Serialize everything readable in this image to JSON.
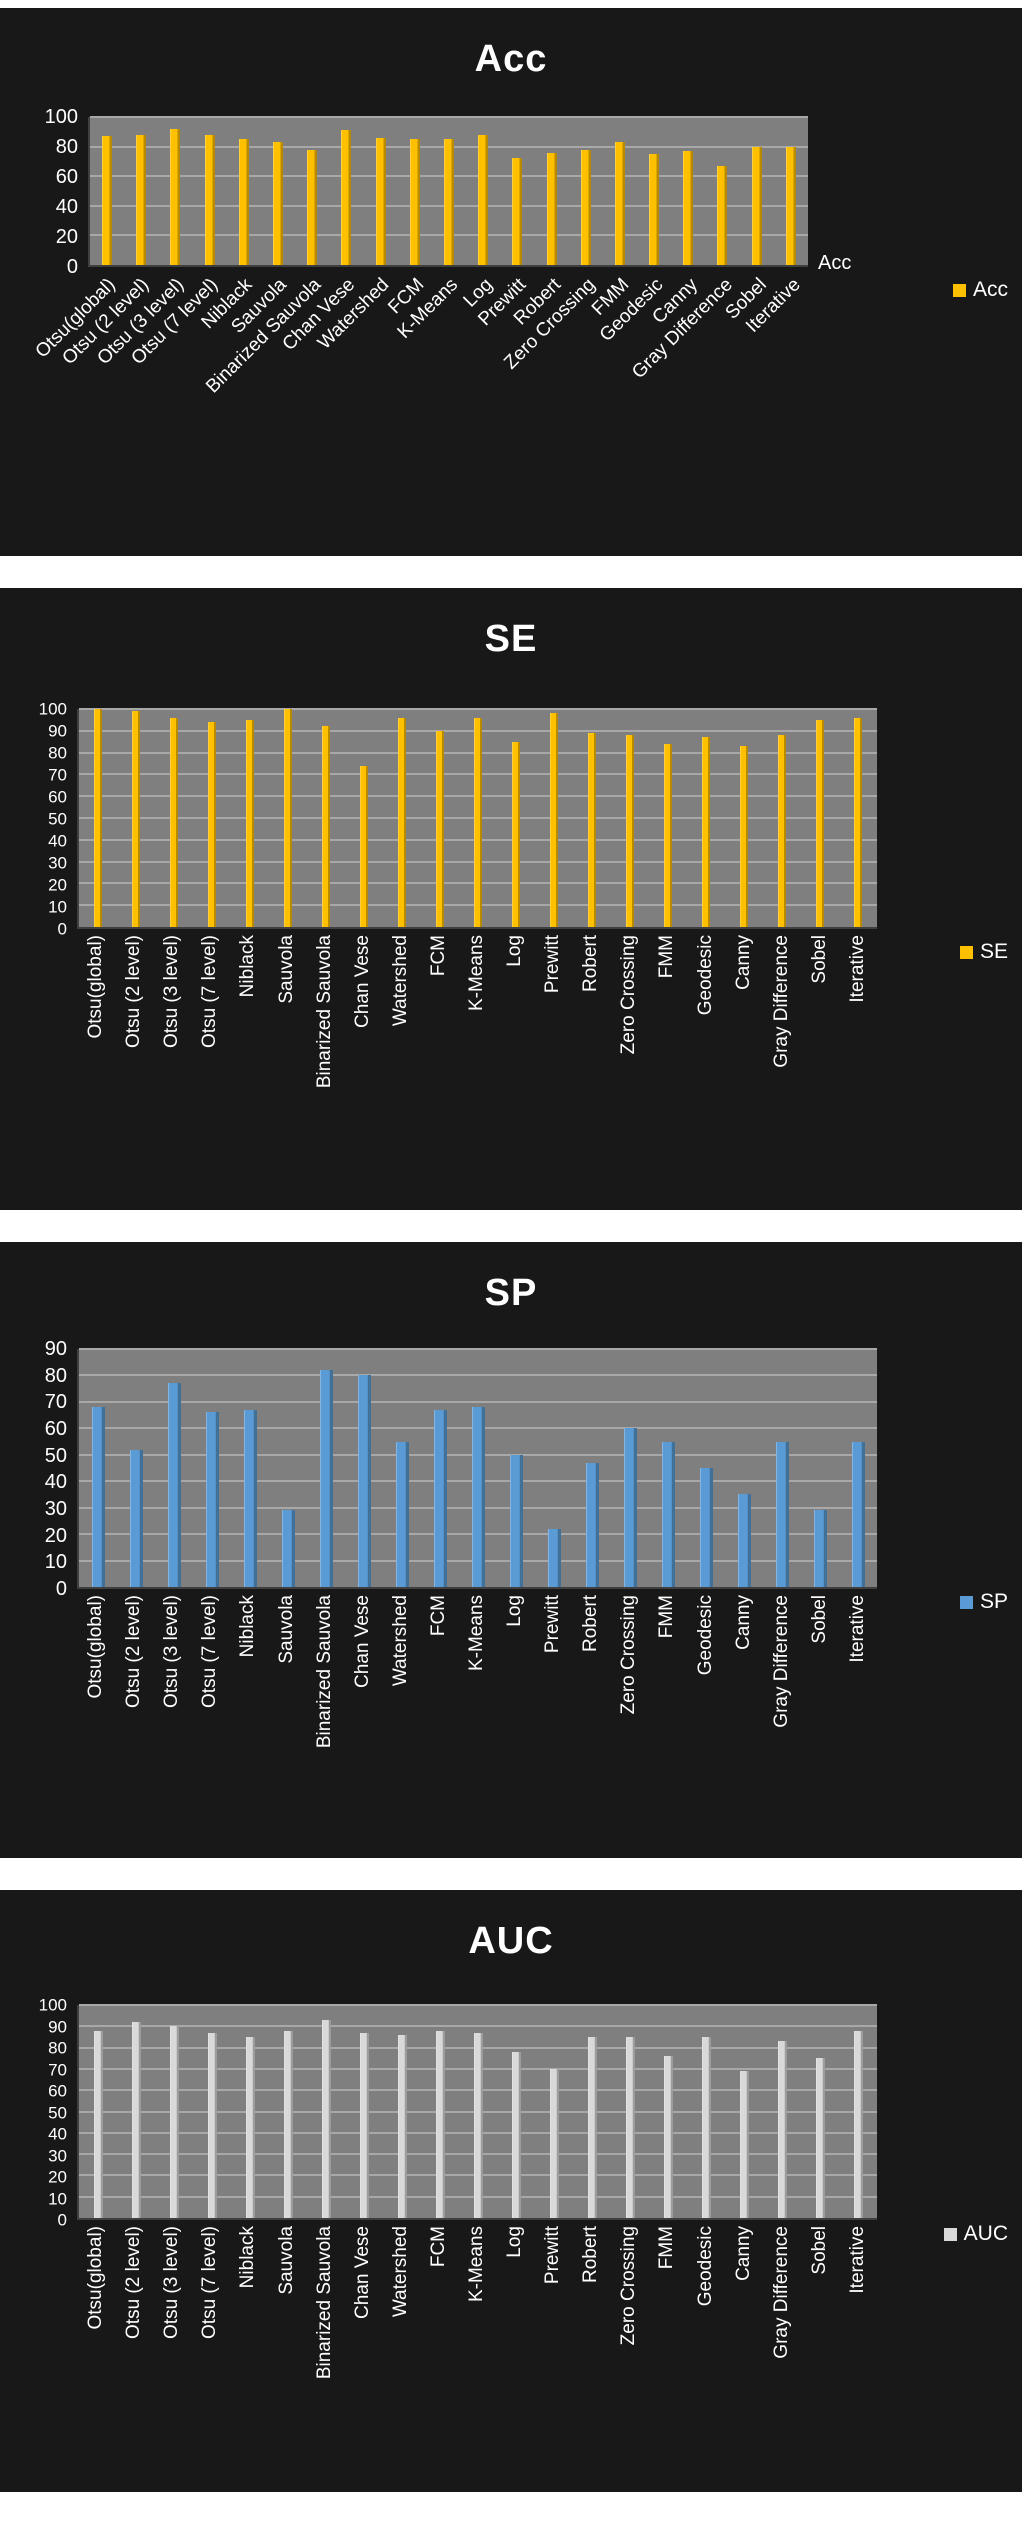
{
  "page": {
    "background": "#ffffff",
    "panel_background": "#181818",
    "plot_background": "#7f7f7f",
    "gridline_color": "#a8a8a8",
    "text_color": "#ffffff"
  },
  "chart_data": [
    {
      "id": "acc",
      "type": "bar",
      "title": "Acc",
      "legend": "Acc",
      "axis_label": "Acc",
      "legend_position": "right",
      "grid": true,
      "label_rotation": 45,
      "bar_color": "#FFC000",
      "ymin": 0,
      "ymax": 100,
      "ystep": 20,
      "ylim": [
        0,
        100
      ],
      "categories": [
        "Otsu(global)",
        "Otsu (2 level)",
        "Otsu (3 level)",
        "Otsu (7 level)",
        "Niblack",
        "Sauvola",
        "Binarized Sauvola",
        "Chan Vese",
        "Watershed",
        "FCM",
        "K-Means",
        "Log",
        "Prewitt",
        "Robert",
        "Zero Crossing",
        "FMM",
        "Geodesic",
        "Canny",
        "Gray Difference",
        "Sobel",
        "Iterative"
      ],
      "values": [
        87,
        88,
        92,
        88,
        85,
        83,
        78,
        91,
        86,
        85,
        85,
        88,
        72,
        76,
        78,
        83,
        75,
        77,
        67,
        80,
        80
      ]
    },
    {
      "id": "se",
      "type": "bar",
      "title": "SE",
      "legend": "SE",
      "legend_position": "right",
      "grid": true,
      "label_rotation": 90,
      "bar_color": "#FFC000",
      "ymin": 0,
      "ymax": 100,
      "ystep": 10,
      "ylim": [
        0,
        100
      ],
      "categories": [
        "Otsu(global)",
        "Otsu (2 level)",
        "Otsu (3 level)",
        "Otsu (7 level)",
        "Niblack",
        "Sauvola",
        "Binarized Sauvola",
        "Chan Vese",
        "Watershed",
        "FCM",
        "K-Means",
        "Log",
        "Prewitt",
        "Robert",
        "Zero Crossing",
        "FMM",
        "Geodesic",
        "Canny",
        "Gray Difference",
        "Sobel",
        "Iterative"
      ],
      "values": [
        100,
        99,
        96,
        94,
        95,
        100,
        92,
        74,
        96,
        90,
        96,
        85,
        98,
        89,
        88,
        84,
        87,
        83,
        88,
        95,
        96
      ]
    },
    {
      "id": "sp",
      "type": "bar",
      "title": "SP",
      "legend": "SP",
      "legend_position": "right",
      "grid": true,
      "label_rotation": 90,
      "bar_color": "#5B9BD5",
      "ymin": 0,
      "ymax": 90,
      "ystep": 10,
      "ylim": [
        0,
        90
      ],
      "categories": [
        "Otsu(global)",
        "Otsu (2 level)",
        "Otsu (3 level)",
        "Otsu (7 level)",
        "Niblack",
        "Sauvola",
        "Binarized Sauvola",
        "Chan Vese",
        "Watershed",
        "FCM",
        "K-Means",
        "Log",
        "Prewitt",
        "Robert",
        "Zero Crossing",
        "FMM",
        "Geodesic",
        "Canny",
        "Gray Difference",
        "Sobel",
        "Iterative"
      ],
      "values": [
        68,
        52,
        77,
        66,
        67,
        29,
        82,
        80,
        55,
        67,
        68,
        50,
        22,
        47,
        60,
        55,
        45,
        35,
        55,
        29,
        55
      ]
    },
    {
      "id": "auc",
      "type": "bar",
      "title": "AUC",
      "legend": "AUC",
      "legend_position": "right",
      "grid": true,
      "label_rotation": 90,
      "bar_color": "#D9D9D9",
      "ymin": 0,
      "ymax": 100,
      "ystep": 10,
      "ylim": [
        0,
        100
      ],
      "categories": [
        "Otsu(global)",
        "Otsu (2 level)",
        "Otsu (3 level)",
        "Otsu (7 level)",
        "Niblack",
        "Sauvola",
        "Binarized Sauvola",
        "Chan Vese",
        "Watershed",
        "FCM",
        "K-Means",
        "Log",
        "Prewitt",
        "Robert",
        "Zero Crossing",
        "FMM",
        "Geodesic",
        "Canny",
        "Gray Difference",
        "Sobel",
        "Iterative"
      ],
      "values": [
        88,
        92,
        90,
        87,
        85,
        88,
        93,
        87,
        86,
        88,
        87,
        78,
        70,
        85,
        85,
        76,
        85,
        69,
        83,
        75,
        88
      ]
    }
  ]
}
